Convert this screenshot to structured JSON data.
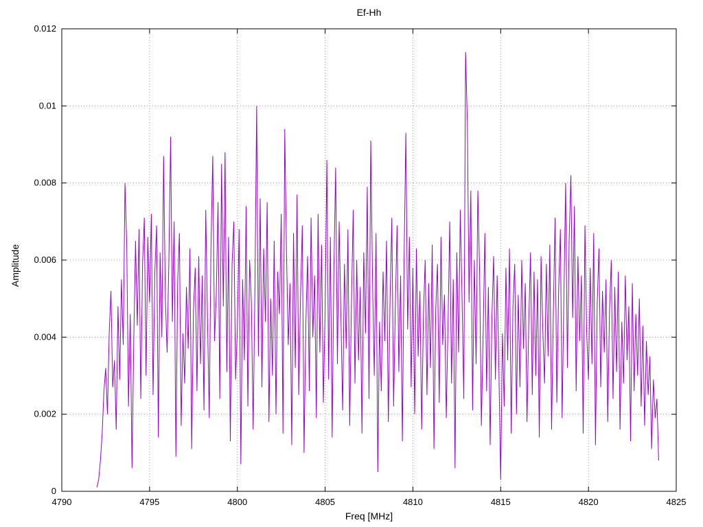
{
  "chart_data": {
    "type": "line",
    "title": "Ef-Hh",
    "xlabel": "Freq [MHz]",
    "ylabel": "Amplitude",
    "xlim": [
      4790,
      4825
    ],
    "ylim": [
      0,
      0.012
    ],
    "x_ticks": [
      4790,
      4795,
      4800,
      4805,
      4810,
      4815,
      4820,
      4825
    ],
    "y_ticks": [
      0,
      0.002,
      0.004,
      0.006,
      0.008,
      0.01,
      0.012
    ],
    "y_tick_labels": [
      "0",
      "0.002",
      "0.004",
      "0.006",
      "0.008",
      "0.01",
      "0.012"
    ],
    "grid": true,
    "legend": false,
    "line_color": "#9400d3",
    "background": "#ffffff",
    "x_start": 4792.0,
    "x_step": 0.1,
    "amplitude_unit": 0.001,
    "values": [
      0.1,
      0.3,
      0.8,
      1.5,
      2.6,
      3.2,
      2.0,
      4.1,
      5.2,
      2.7,
      3.4,
      1.6,
      4.8,
      2.9,
      5.5,
      3.8,
      8.0,
      6.4,
      2.2,
      4.6,
      0.6,
      3.9,
      6.5,
      4.3,
      6.8,
      2.4,
      5.9,
      7.1,
      3.0,
      6.6,
      4.9,
      7.2,
      2.5,
      5.7,
      6.9,
      1.4,
      6.2,
      4.0,
      8.7,
      5.0,
      3.6,
      6.0,
      9.2,
      4.4,
      7.0,
      0.9,
      5.4,
      6.7,
      1.7,
      4.1,
      2.8,
      5.3,
      3.7,
      6.3,
      1.1,
      4.7,
      5.8,
      2.6,
      6.1,
      3.3,
      5.6,
      2.1,
      7.3,
      4.5,
      1.9,
      6.4,
      8.7,
      3.9,
      5.1,
      7.5,
      2.4,
      8.5,
      4.8,
      8.8,
      3.1,
      6.6,
      1.3,
      5.9,
      7.0,
      2.9,
      4.2,
      6.8,
      0.7,
      5.5,
      3.4,
      7.4,
      2.2,
      6.0,
      4.9,
      1.6,
      5.2,
      10.0,
      3.5,
      7.6,
      2.7,
      6.3,
      4.4,
      7.5,
      1.8,
      5.0,
      3.0,
      6.5,
      2.0,
      5.7,
      4.6,
      7.2,
      1.5,
      9.4,
      6.2,
      3.8,
      5.4,
      1.2,
      6.7,
      3.2,
      7.7,
      2.5,
      5.1,
      6.9,
      1.0,
      4.3,
      6.1,
      2.6,
      7.1,
      4.0,
      5.6,
      1.9,
      7.2,
      3.6,
      6.4,
      2.3,
      4.7,
      8.6,
      2.9,
      6.6,
      1.4,
      5.8,
      8.4,
      3.3,
      7.0,
      4.5,
      2.1,
      5.9,
      3.7,
      6.8,
      1.7,
      4.9,
      7.3,
      2.8,
      6.0,
      3.4,
      5.3,
      1.5,
      6.2,
      4.1,
      7.9,
      2.4,
      9.1,
      5.5,
      3.0,
      6.7,
      0.5,
      4.4,
      2.6,
      5.7,
      3.9,
      6.5,
      1.8,
      5.0,
      7.1,
      2.2,
      4.8,
      6.9,
      3.1,
      5.6,
      1.3,
      6.1,
      9.3,
      4.2,
      6.6,
      2.7,
      5.8,
      2.0,
      6.3,
      3.5,
      5.2,
      1.6,
      4.6,
      6.0,
      2.5,
      5.4,
      3.2,
      6.4,
      1.1,
      4.7,
      5.9,
      2.3,
      6.6,
      3.8,
      5.1,
      1.9,
      4.3,
      7.0,
      2.8,
      5.5,
      0.6,
      6.2,
      3.6,
      7.3,
      5.0,
      2.4,
      11.4,
      9.6,
      4.9,
      7.8,
      2.1,
      6.0,
      3.3,
      7.8,
      5.7,
      1.7,
      4.0,
      6.7,
      2.6,
      5.3,
      1.2,
      4.5,
      6.1,
      2.9,
      5.6,
      3.1,
      0.3,
      4.1,
      2.2,
      5.8,
      3.4,
      6.3,
      1.5,
      4.8,
      5.9,
      2.0,
      5.1,
      2.7,
      6.0,
      3.7,
      5.4,
      1.8,
      4.4,
      6.2,
      2.5,
      5.7,
      3.0,
      5.5,
      1.4,
      6.1,
      4.2,
      2.8,
      5.9,
      3.5,
      6.4,
      1.6,
      4.6,
      7.1,
      2.3,
      5.2,
      6.8,
      1.9,
      5.0,
      8.0,
      3.2,
      6.5,
      8.2,
      4.5,
      7.4,
      2.6,
      6.1,
      3.9,
      5.6,
      1.5,
      6.9,
      4.1,
      2.9,
      5.8,
      3.3,
      6.7,
      1.2,
      4.9,
      6.3,
      2.7,
      5.2,
      3.6,
      5.5,
      1.8,
      4.7,
      6.0,
      2.4,
      5.3,
      3.1,
      5.7,
      1.6,
      4.4,
      2.8,
      5.6,
      3.4,
      4.8,
      1.3,
      5.4,
      2.6,
      4.6,
      3.0,
      5.0,
      2.2,
      4.3,
      1.7,
      3.9,
      2.5,
      3.5,
      1.1,
      2.9,
      1.9,
      2.4,
      0.8
    ]
  }
}
